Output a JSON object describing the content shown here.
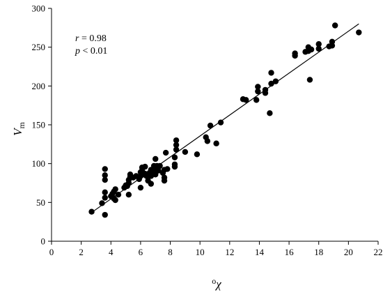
{
  "chart_data": {
    "type": "scatter",
    "title": "",
    "xlabel_superscript": "o",
    "xlabel_symbol": "χ",
    "ylabel_symbol": "V",
    "ylabel_subscript": "m",
    "xlim": [
      0,
      22
    ],
    "ylim": [
      0,
      300
    ],
    "xticks": [
      0,
      2,
      4,
      6,
      8,
      10,
      12,
      14,
      16,
      18,
      20,
      22
    ],
    "yticks": [
      0,
      50,
      100,
      150,
      200,
      250,
      300
    ],
    "grid": false,
    "legend": "none",
    "annotations": {
      "r_symbol": "r",
      "r_text": " = 0.98",
      "p_symbol": "p",
      "p_text": " < 0.01"
    },
    "series": [
      {
        "points": [
          [
            2.7,
            38
          ],
          [
            3.4,
            49
          ],
          [
            3.6,
            34
          ],
          [
            3.6,
            56
          ],
          [
            3.6,
            63
          ],
          [
            3.6,
            79
          ],
          [
            3.6,
            85
          ],
          [
            3.6,
            93
          ],
          [
            4.0,
            58
          ],
          [
            4.1,
            61
          ],
          [
            4.2,
            55
          ],
          [
            4.2,
            64
          ],
          [
            4.3,
            53
          ],
          [
            4.3,
            67
          ],
          [
            4.5,
            60
          ],
          [
            4.9,
            69
          ],
          [
            5.0,
            72
          ],
          [
            5.1,
            71
          ],
          [
            5.2,
            60
          ],
          [
            5.2,
            75
          ],
          [
            5.2,
            79
          ],
          [
            5.3,
            83
          ],
          [
            5.3,
            86
          ],
          [
            5.5,
            82
          ],
          [
            5.7,
            84
          ],
          [
            5.9,
            80
          ],
          [
            6.0,
            69
          ],
          [
            6.0,
            84
          ],
          [
            6.0,
            89
          ],
          [
            6.1,
            91
          ],
          [
            6.1,
            95
          ],
          [
            6.2,
            86
          ],
          [
            6.3,
            87
          ],
          [
            6.3,
            96
          ],
          [
            6.4,
            84
          ],
          [
            6.5,
            78
          ],
          [
            6.6,
            88
          ],
          [
            6.7,
            74
          ],
          [
            6.7,
            84
          ],
          [
            6.7,
            92
          ],
          [
            6.8,
            87
          ],
          [
            6.9,
            97
          ],
          [
            7.0,
            86
          ],
          [
            7.0,
            93
          ],
          [
            7.0,
            106
          ],
          [
            7.1,
            97
          ],
          [
            7.2,
            91
          ],
          [
            7.3,
            97
          ],
          [
            7.5,
            88
          ],
          [
            7.6,
            78
          ],
          [
            7.6,
            82
          ],
          [
            7.6,
            92
          ],
          [
            7.7,
            114
          ],
          [
            7.8,
            93
          ],
          [
            8.3,
            96
          ],
          [
            8.3,
            99
          ],
          [
            8.3,
            108
          ],
          [
            8.4,
            118
          ],
          [
            8.4,
            124
          ],
          [
            8.4,
            130
          ],
          [
            9.0,
            115
          ],
          [
            9.8,
            112
          ],
          [
            10.4,
            134
          ],
          [
            10.5,
            129
          ],
          [
            10.7,
            149
          ],
          [
            11.1,
            126
          ],
          [
            11.4,
            153
          ],
          [
            12.9,
            183
          ],
          [
            13.1,
            182
          ],
          [
            13.8,
            182
          ],
          [
            13.9,
            193
          ],
          [
            13.9,
            199
          ],
          [
            14.4,
            191
          ],
          [
            14.4,
            195
          ],
          [
            14.7,
            165
          ],
          [
            14.8,
            203
          ],
          [
            14.8,
            217
          ],
          [
            15.1,
            206
          ],
          [
            16.4,
            239
          ],
          [
            16.4,
            242
          ],
          [
            17.1,
            244
          ],
          [
            17.3,
            245
          ],
          [
            17.3,
            250
          ],
          [
            17.4,
            208
          ],
          [
            17.5,
            247
          ],
          [
            18.0,
            248
          ],
          [
            18.0,
            254
          ],
          [
            18.7,
            251
          ],
          [
            18.9,
            252
          ],
          [
            18.9,
            257
          ],
          [
            19.1,
            278
          ],
          [
            20.7,
            269
          ]
        ]
      }
    ],
    "trendline": {
      "x": [
        2.7,
        20.7
      ],
      "y": [
        37,
        280
      ]
    }
  }
}
